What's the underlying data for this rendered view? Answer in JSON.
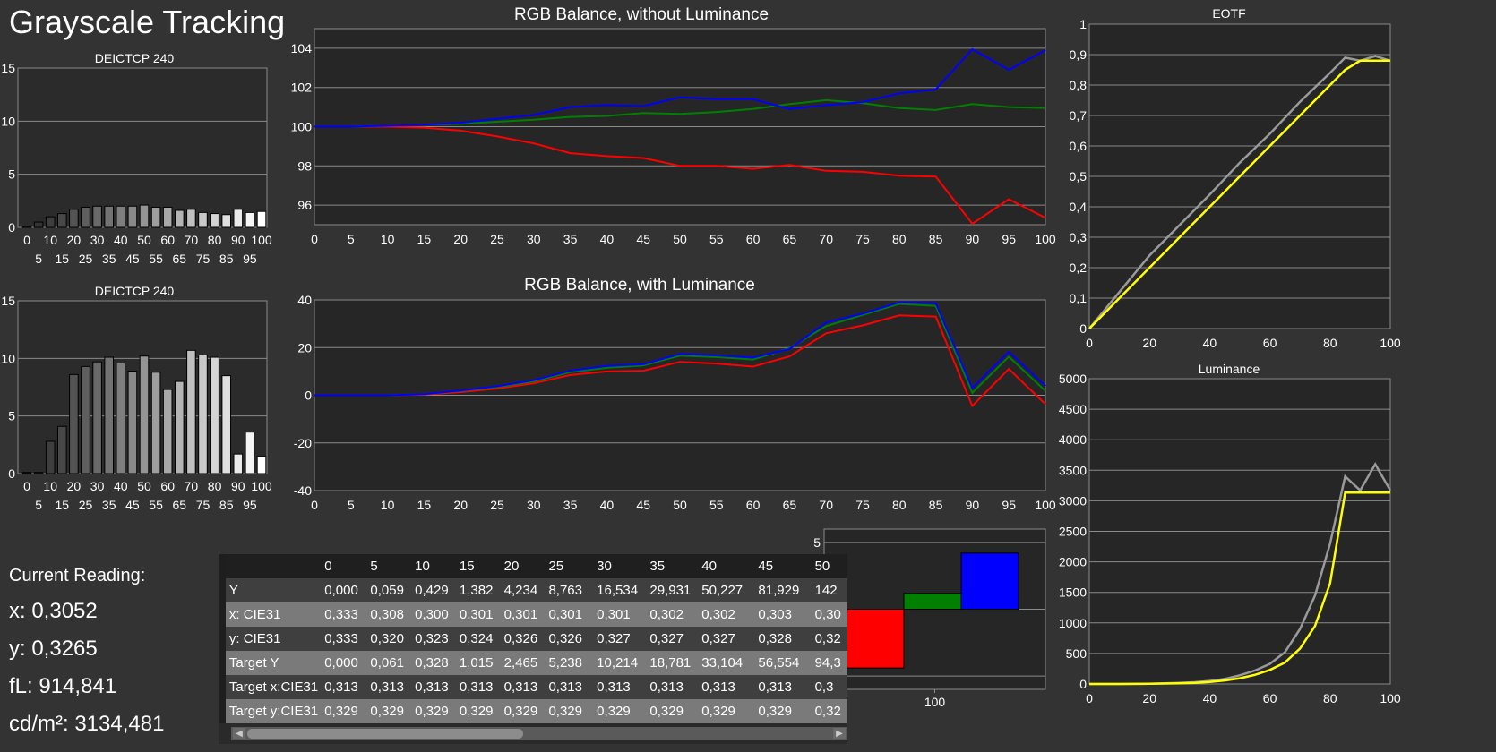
{
  "page": {
    "title": "Grayscale Tracking"
  },
  "colors": {
    "red": "#ff0000",
    "green": "#008000",
    "blue": "#0000ff",
    "yellow": "#ffff00",
    "gray": "#9a9a9a"
  },
  "reading": {
    "heading": "Current Reading:",
    "x": "x: 0,3052",
    "y": "y: 0,3265",
    "fl": "fL: 914,841",
    "cdm2": "cd/m²: 3134,481"
  },
  "table": {
    "headers": [
      "0",
      "5",
      "10",
      "15",
      "20",
      "25",
      "30",
      "35",
      "40",
      "45",
      "50"
    ],
    "rows": [
      {
        "label": "Y",
        "values": [
          "0,000",
          "0,059",
          "0,429",
          "1,382",
          "4,234",
          "8,763",
          "16,534",
          "29,931",
          "50,227",
          "81,929",
          "142"
        ]
      },
      {
        "label": "x: CIE31",
        "values": [
          "0,333",
          "0,308",
          "0,300",
          "0,301",
          "0,301",
          "0,301",
          "0,301",
          "0,302",
          "0,302",
          "0,303",
          "0,30"
        ]
      },
      {
        "label": "y: CIE31",
        "values": [
          "0,333",
          "0,320",
          "0,323",
          "0,324",
          "0,326",
          "0,326",
          "0,327",
          "0,327",
          "0,327",
          "0,328",
          "0,32"
        ]
      },
      {
        "label": "Target Y",
        "values": [
          "0,000",
          "0,061",
          "0,328",
          "1,015",
          "2,465",
          "5,238",
          "10,214",
          "18,781",
          "33,104",
          "56,554",
          "94,3"
        ]
      },
      {
        "label": "Target x:CIE31",
        "values": [
          "0,313",
          "0,313",
          "0,313",
          "0,313",
          "0,313",
          "0,313",
          "0,313",
          "0,313",
          "0,313",
          "0,313",
          "0,3"
        ]
      },
      {
        "label": "Target y:CIE31",
        "values": [
          "0,329",
          "0,329",
          "0,329",
          "0,329",
          "0,329",
          "0,329",
          "0,329",
          "0,329",
          "0,329",
          "0,329",
          "0,32"
        ]
      }
    ]
  },
  "chart_data": [
    {
      "id": "deictcp1",
      "type": "bar",
      "title": "DEICTCP 240",
      "categories": [
        0,
        5,
        10,
        15,
        20,
        25,
        30,
        35,
        40,
        45,
        50,
        55,
        60,
        65,
        70,
        75,
        80,
        85,
        90,
        95,
        100
      ],
      "values": [
        0.1,
        0.5,
        1.0,
        1.3,
        1.7,
        1.9,
        2.0,
        2.0,
        2.0,
        2.0,
        2.1,
        1.9,
        1.9,
        1.6,
        1.7,
        1.4,
        1.3,
        1.2,
        1.7,
        1.4,
        1.5
      ],
      "ylim": [
        0,
        15
      ],
      "yticks": [
        0,
        5,
        10,
        15
      ],
      "xticks_top": [
        0,
        10,
        20,
        30,
        40,
        50,
        60,
        70,
        80,
        90,
        100
      ],
      "xticks_bottom": [
        5,
        15,
        25,
        35,
        45,
        55,
        65,
        75,
        85,
        95
      ]
    },
    {
      "id": "deictcp2",
      "type": "bar",
      "title": "DEICTCP 240",
      "categories": [
        0,
        5,
        10,
        15,
        20,
        25,
        30,
        35,
        40,
        45,
        50,
        55,
        60,
        65,
        70,
        75,
        80,
        85,
        90,
        95,
        100
      ],
      "values": [
        0.1,
        0.1,
        2.8,
        4.1,
        8.6,
        9.3,
        9.7,
        10.1,
        9.6,
        8.9,
        10.2,
        8.8,
        7.3,
        8.0,
        10.7,
        10.3,
        10.1,
        8.5,
        1.7,
        3.6,
        1.5
      ],
      "ylim": [
        0,
        15
      ],
      "yticks": [
        0,
        5,
        10,
        15
      ],
      "xticks_top": [
        0,
        10,
        20,
        30,
        40,
        50,
        60,
        70,
        80,
        90,
        100
      ],
      "xticks_bottom": [
        5,
        15,
        25,
        35,
        45,
        55,
        65,
        75,
        85,
        95
      ]
    },
    {
      "id": "rgb1",
      "type": "line",
      "title": "RGB Balance, without Luminance",
      "x": [
        0,
        5,
        10,
        15,
        20,
        25,
        30,
        35,
        40,
        45,
        50,
        55,
        60,
        65,
        70,
        75,
        80,
        85,
        90,
        95,
        100
      ],
      "series": [
        {
          "color": "red",
          "values": [
            100,
            100,
            100,
            99.95,
            99.8,
            99.5,
            99.15,
            98.65,
            98.5,
            98.4,
            98.0,
            98.0,
            97.85,
            98.05,
            97.75,
            97.7,
            97.5,
            97.45,
            95.05,
            96.3,
            95.35
          ]
        },
        {
          "color": "green",
          "values": [
            100,
            100,
            100.05,
            100.1,
            100.15,
            100.25,
            100.35,
            100.5,
            100.55,
            100.7,
            100.65,
            100.75,
            100.9,
            101.15,
            101.35,
            101.2,
            100.95,
            100.85,
            101.15,
            101.0,
            100.95
          ]
        },
        {
          "color": "blue",
          "values": [
            100,
            100,
            100.05,
            100.1,
            100.2,
            100.4,
            100.6,
            101.0,
            101.1,
            101.05,
            101.5,
            101.4,
            101.4,
            100.9,
            101.1,
            101.25,
            101.7,
            101.9,
            103.95,
            102.9,
            103.9
          ]
        }
      ],
      "ylim": [
        95,
        105
      ],
      "yticks": [
        96,
        98,
        100,
        102,
        104
      ],
      "xticks": [
        0,
        5,
        10,
        15,
        20,
        25,
        30,
        35,
        40,
        45,
        50,
        55,
        60,
        65,
        70,
        75,
        80,
        85,
        90,
        95,
        100
      ]
    },
    {
      "id": "rgb2",
      "type": "line",
      "title": "RGB Balance, with Luminance",
      "x": [
        0,
        5,
        10,
        15,
        20,
        25,
        30,
        35,
        40,
        45,
        50,
        55,
        60,
        65,
        70,
        75,
        80,
        85,
        90,
        95,
        100
      ],
      "series": [
        {
          "color": "red",
          "values": [
            0,
            0,
            0,
            0.3,
            1.3,
            2.8,
            5.0,
            8.5,
            10,
            10.3,
            14,
            13.3,
            12,
            16.3,
            26,
            29.3,
            33.5,
            33,
            -4.5,
            11,
            -3.7
          ]
        },
        {
          "color": "green",
          "values": [
            0,
            0,
            0,
            0.5,
            1.8,
            3.4,
            5.8,
            9.7,
            11.5,
            12.5,
            16.6,
            16,
            15,
            19.8,
            29,
            33.7,
            38.3,
            37.5,
            1,
            16.2,
            1.8
          ]
        },
        {
          "color": "blue",
          "values": [
            0,
            0,
            0,
            0.5,
            2,
            3.8,
            6.3,
            10.3,
            12.3,
            13,
            17.3,
            16.7,
            15.8,
            19.4,
            30.5,
            34.2,
            39,
            38.7,
            3,
            18.2,
            3.9
          ]
        }
      ],
      "ylim": [
        -40,
        40
      ],
      "yticks": [
        -40,
        -20,
        0,
        20,
        40
      ],
      "xticks": [
        0,
        5,
        10,
        15,
        20,
        25,
        30,
        35,
        40,
        45,
        50,
        55,
        60,
        65,
        70,
        75,
        80,
        85,
        90,
        95,
        100
      ]
    },
    {
      "id": "eotf",
      "type": "line",
      "title": "EOTF",
      "x": [
        0,
        10,
        20,
        30,
        40,
        50,
        60,
        70,
        80,
        85,
        90,
        95,
        100
      ],
      "series": [
        {
          "color": "gray",
          "values": [
            0,
            0.12,
            0.24,
            0.34,
            0.44,
            0.545,
            0.64,
            0.745,
            0.84,
            0.89,
            0.88,
            0.895,
            0.88
          ]
        },
        {
          "color": "yellow",
          "values": [
            0,
            0.1,
            0.2,
            0.3,
            0.4,
            0.5,
            0.6,
            0.7,
            0.8,
            0.85,
            0.88,
            0.88,
            0.88
          ]
        }
      ],
      "ylim": [
        0,
        1
      ],
      "yticks": [
        0,
        0.1,
        0.2,
        0.3,
        0.4,
        0.5,
        0.6,
        0.7,
        0.8,
        0.9,
        1
      ],
      "ytick_labels": [
        "0",
        "0,1",
        "0,2",
        "0,3",
        "0,4",
        "0,5",
        "0,6",
        "0,7",
        "0,8",
        "0,9",
        "1"
      ],
      "xticks": [
        0,
        20,
        40,
        60,
        80,
        100
      ]
    },
    {
      "id": "luminance",
      "type": "line",
      "title": "Luminance",
      "x": [
        0,
        10,
        20,
        30,
        35,
        40,
        45,
        50,
        55,
        60,
        65,
        70,
        75,
        80,
        85,
        90,
        95,
        100
      ],
      "series": [
        {
          "color": "gray",
          "values": [
            0,
            0.4,
            4,
            17,
            30,
            50,
            82,
            142,
            220,
            330,
            520,
            900,
            1450,
            2300,
            3400,
            3170,
            3600,
            3170
          ]
        },
        {
          "color": "yellow",
          "values": [
            0,
            0.3,
            2.5,
            10,
            19,
            33,
            57,
            94,
            150,
            230,
            350,
            580,
            950,
            1650,
            3134,
            3134,
            3134,
            3134
          ]
        }
      ],
      "ylim": [
        0,
        5000
      ],
      "yticks": [
        0,
        500,
        1000,
        1500,
        2000,
        2500,
        3000,
        3500,
        4000,
        4500,
        5000
      ],
      "xticks": [
        0,
        20,
        40,
        60,
        80,
        100
      ]
    },
    {
      "id": "rgbbars",
      "type": "bar",
      "categories": [
        "red",
        "green",
        "blue"
      ],
      "values": [
        -4.4,
        1.2,
        4.2
      ],
      "ylim": [
        -6,
        6
      ],
      "yticks": [
        -5,
        0,
        5
      ],
      "xlabel": "100"
    }
  ]
}
